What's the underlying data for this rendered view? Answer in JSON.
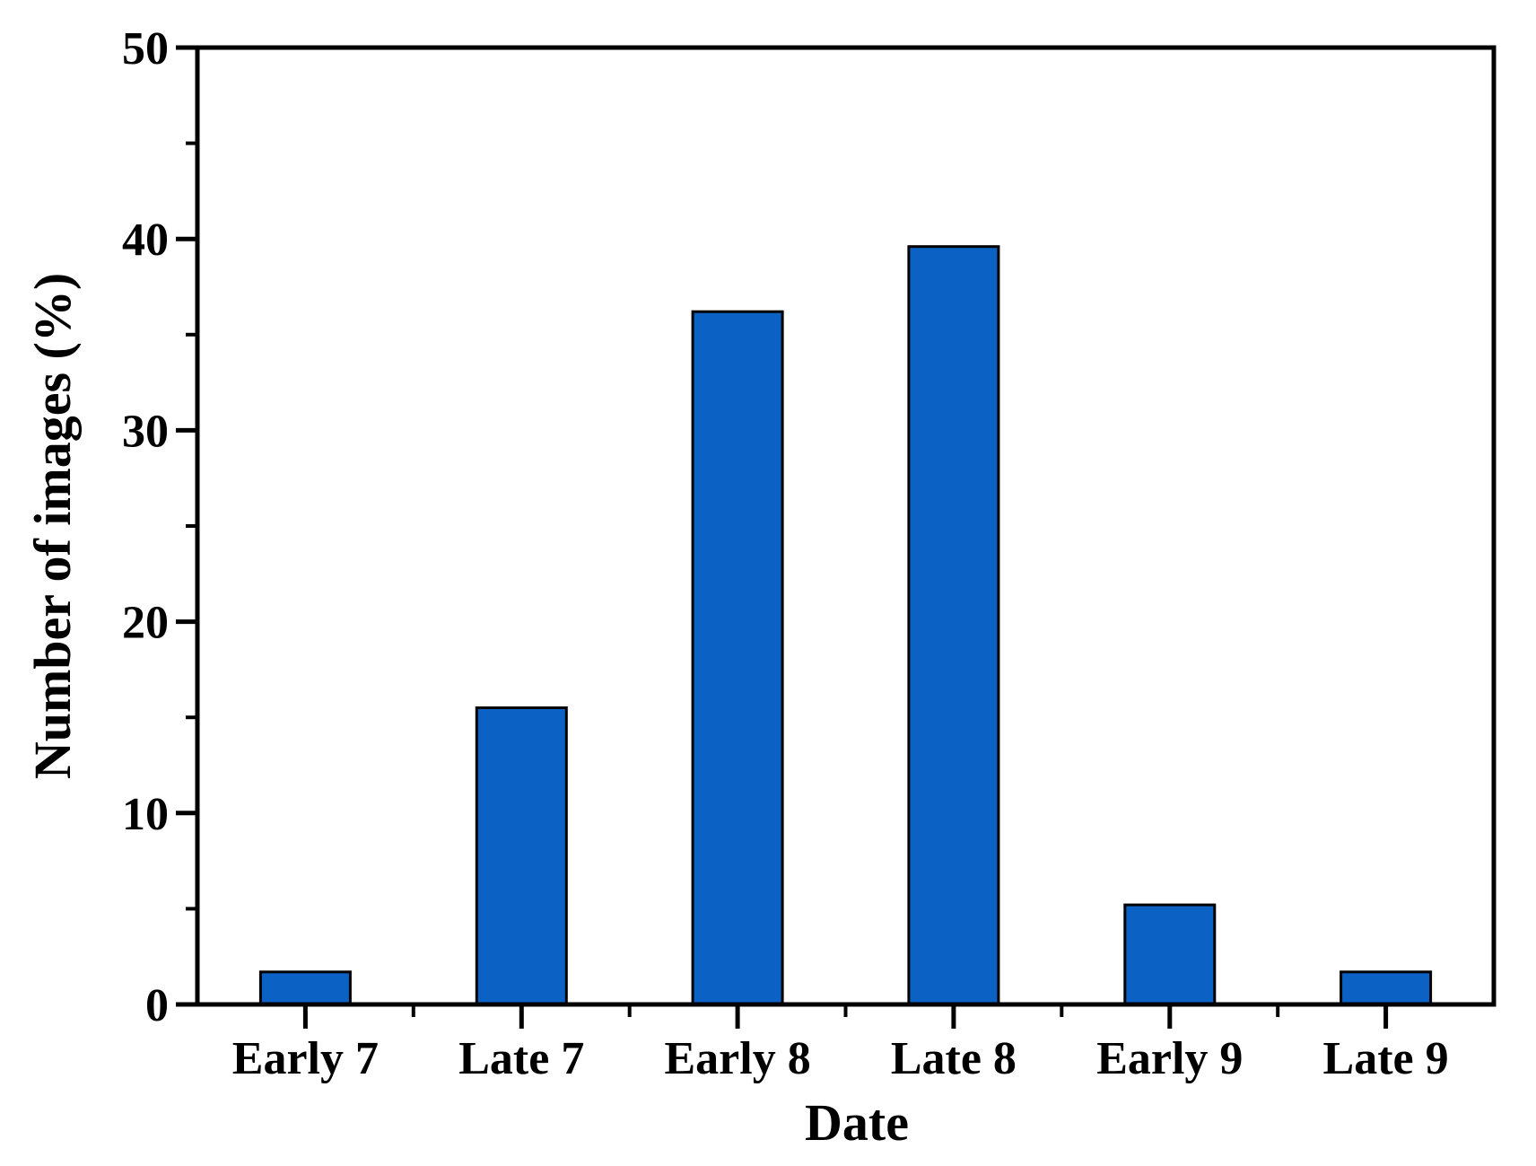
{
  "figure": {
    "kind": "bar-chart-figure",
    "background": "#ffffff"
  },
  "chart_data": {
    "type": "bar",
    "title": "",
    "xlabel": "Date",
    "ylabel": "Number of images (%)",
    "categories": [
      "Early 7",
      "Late 7",
      "Early 8",
      "Late 8",
      "Early 9",
      "Late 9"
    ],
    "values": [
      1.7,
      15.5,
      36.2,
      39.6,
      5.2,
      1.7
    ],
    "ylim": [
      0,
      50
    ],
    "y_major_ticks": [
      0,
      10,
      20,
      30,
      40,
      50
    ],
    "y_minor_step": 5,
    "grid": false,
    "legend": "none",
    "frame": "full-box",
    "colors": {
      "bar_fill": "#0C62C4",
      "bar_edge": "#000000",
      "axis": "#000000",
      "text": "#000000",
      "background": "#ffffff"
    }
  }
}
